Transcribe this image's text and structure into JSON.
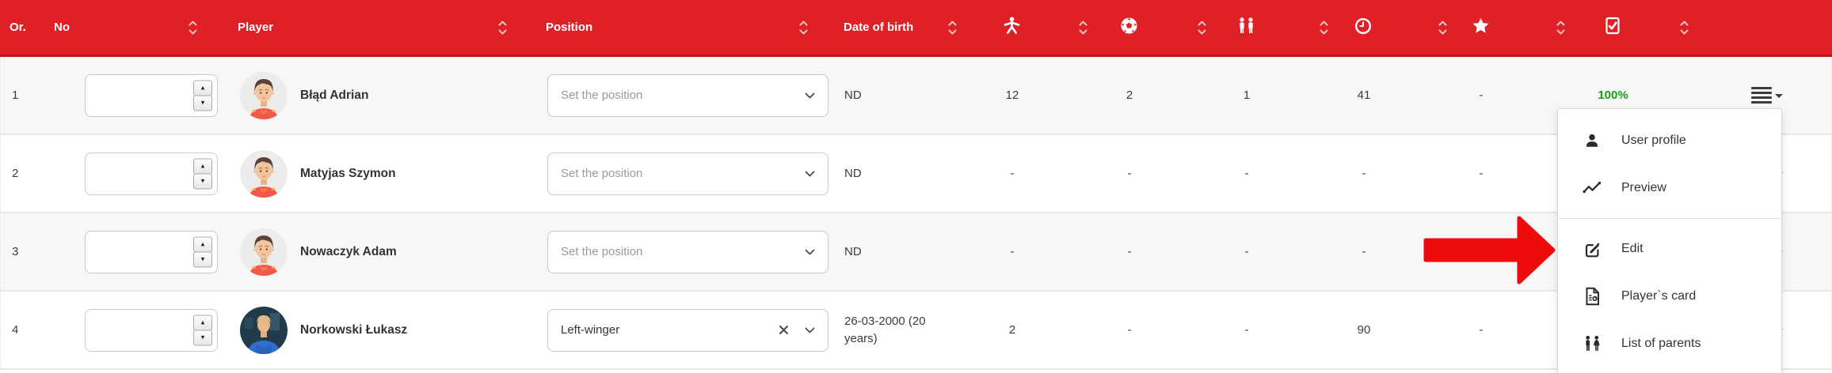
{
  "table": {
    "headers": {
      "or": "Or.",
      "no": "No",
      "player": "Player",
      "position": "Position",
      "dob": "Date of birth"
    },
    "stat_icons": [
      "player-body-icon",
      "soccer-ball-icon",
      "parents-icon",
      "clock-icon",
      "star-icon",
      "checkbox-icon"
    ],
    "position_placeholder": "Set the position",
    "rows": [
      {
        "or": "1",
        "no": "",
        "player": "Błąd Adrian",
        "avatar": "cartoon-boy",
        "position": "",
        "dob": "ND",
        "stats": [
          "12",
          "2",
          "1",
          "41",
          "-"
        ],
        "attendance": "100%"
      },
      {
        "or": "2",
        "no": "",
        "player": "Matyjas Szymon",
        "avatar": "cartoon-boy",
        "position": "",
        "dob": "ND",
        "stats": [
          "-",
          "-",
          "-",
          "-",
          "-"
        ],
        "attendance": ""
      },
      {
        "or": "3",
        "no": "",
        "player": "Nowaczyk Adam",
        "avatar": "cartoon-boy",
        "position": "",
        "dob": "ND",
        "stats": [
          "-",
          "-",
          "-",
          "-",
          "-"
        ],
        "attendance": ""
      },
      {
        "or": "4",
        "no": "",
        "player": "Norkowski Łukasz",
        "avatar": "photo-blue",
        "position": "Left-winger",
        "dob": "26-03-2000 (20 years)",
        "stats": [
          "2",
          "-",
          "-",
          "90",
          "-"
        ],
        "attendance": ""
      }
    ]
  },
  "menu": {
    "items": [
      {
        "icon": "user-profile-icon",
        "label": "User profile"
      },
      {
        "icon": "preview-chart-icon",
        "label": "Preview"
      },
      {
        "divider": true
      },
      {
        "icon": "edit-icon",
        "label": "Edit"
      },
      {
        "icon": "player-card-icon",
        "label": "Player`s card"
      },
      {
        "icon": "list-of-parents-icon",
        "label": "List of parents"
      }
    ]
  },
  "annotation_arrow": {
    "points_to": "Edit"
  },
  "colors": {
    "header_red": "#df2026",
    "header_border_red": "#bf151c",
    "attendance_green": "#15a115",
    "arrow_red": "#ec0c0c"
  }
}
